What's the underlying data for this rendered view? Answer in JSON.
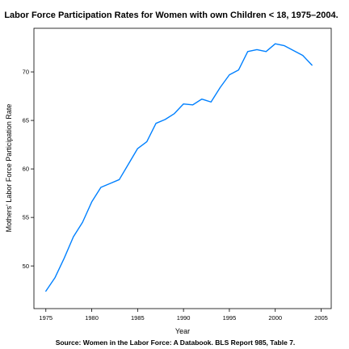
{
  "chart_data": {
    "type": "line",
    "title": "Labor Force Participation Rates for Women with own Children < 18, 1975–2004.",
    "xlabel": "Year",
    "ylabel": "Mothers' Labor Force Participation Rate",
    "source": "Source: Women in the Labor Force: A Databook. BLS Report 985, Table 7.",
    "xlim": [
      1973.7,
      2006.1
    ],
    "ylim": [
      45.6,
      74.5
    ],
    "xticks": [
      1975,
      1980,
      1985,
      1990,
      1995,
      2000,
      2005
    ],
    "yticks": [
      50,
      55,
      60,
      65,
      70
    ],
    "grid": false,
    "line_color": "#0080ff",
    "x": [
      1975,
      1976,
      1977,
      1978,
      1979,
      1980,
      1981,
      1982,
      1983,
      1984,
      1985,
      1986,
      1987,
      1988,
      1989,
      1990,
      1991,
      1992,
      1993,
      1994,
      1995,
      1996,
      1997,
      1998,
      1999,
      2000,
      2001,
      2002,
      2003,
      2004
    ],
    "y": [
      47.4,
      48.8,
      50.8,
      53.0,
      54.5,
      56.6,
      58.1,
      58.5,
      58.9,
      60.5,
      62.1,
      62.8,
      64.7,
      65.1,
      65.7,
      66.7,
      66.6,
      67.2,
      66.9,
      68.4,
      69.7,
      70.2,
      72.1,
      72.3,
      72.1,
      72.9,
      72.7,
      72.2,
      71.7,
      70.7
    ]
  }
}
